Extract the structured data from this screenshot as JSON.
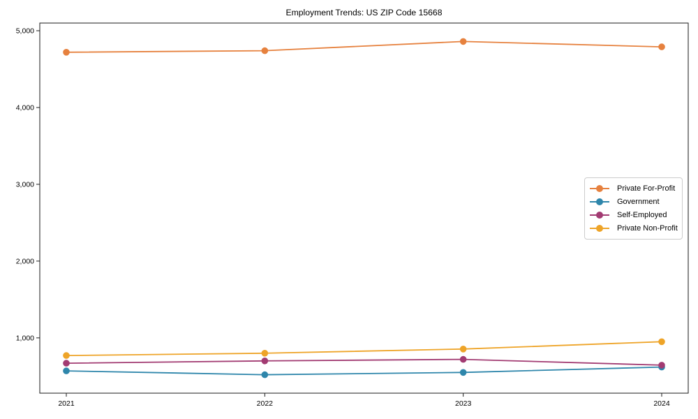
{
  "chart_data": {
    "type": "line",
    "title": "Employment Trends: US ZIP Code 15668",
    "xlabel": "",
    "ylabel": "",
    "x": [
      "2021",
      "2022",
      "2023",
      "2024"
    ],
    "series": [
      {
        "name": "Private For-Profit",
        "color": "#E6813E",
        "values": [
          4720,
          4740,
          4860,
          4790
        ]
      },
      {
        "name": "Government",
        "color": "#2E86AB",
        "values": [
          570,
          520,
          550,
          620
        ]
      },
      {
        "name": "Self-Employed",
        "color": "#A23B72",
        "values": [
          670,
          700,
          720,
          645
        ]
      },
      {
        "name": "Private Non-Profit",
        "color": "#EEA428",
        "values": [
          770,
          800,
          855,
          950
        ]
      }
    ],
    "yticks": [
      1000,
      2000,
      3000,
      4000,
      5000
    ],
    "ytick_labels": [
      "1,000",
      "2,000",
      "3,000",
      "4,000",
      "5,000"
    ],
    "ylim": [
      280,
      5100
    ],
    "grid": false,
    "legend_position": "center right",
    "marker": "circle",
    "axis_color": "#1a1a1a"
  }
}
